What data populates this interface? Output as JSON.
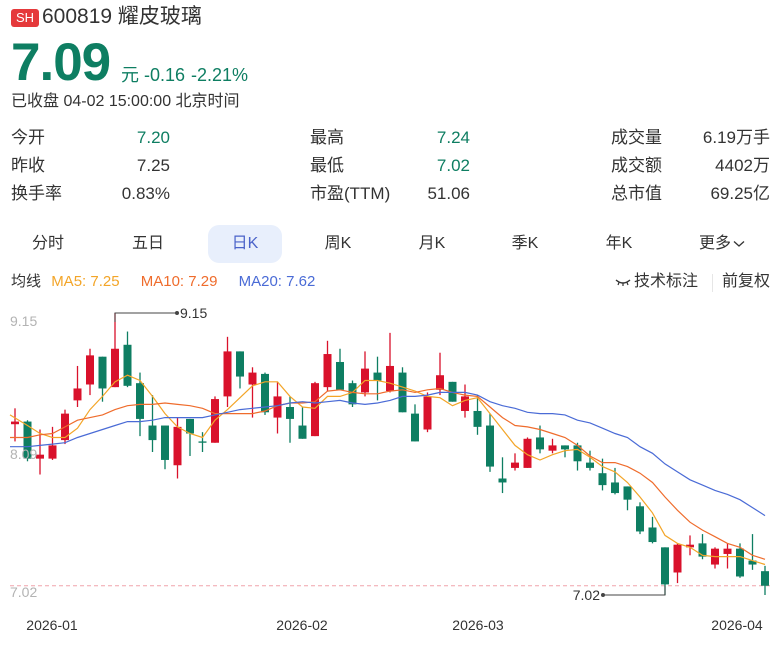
{
  "header": {
    "exchange_badge": "SH",
    "stock_code": "600819",
    "stock_name": "耀皮玻璃",
    "price": "7.09",
    "currency_unit": "元",
    "change": "-0.16",
    "change_pct": "-2.21%",
    "status": "已收盘 04-02 15:00:00 北京时间"
  },
  "colors": {
    "down": "#0e7e62",
    "up": "#d9112b",
    "badge": "#e5393b",
    "ma5": "#f3a528",
    "ma10": "#ef6c2c",
    "ma20": "#4a6bd6",
    "active_tab_bg": "#e8effc",
    "active_tab_text": "#4b63c9",
    "price_line": "#f0a3ab"
  },
  "stats": [
    [
      {
        "label": "今开",
        "value": "7.20",
        "color": "green"
      },
      {
        "label": "最高",
        "value": "7.24",
        "color": "green"
      },
      {
        "label": "成交量",
        "value": "6.19万手",
        "color": "default"
      }
    ],
    [
      {
        "label": "昨收",
        "value": "7.25",
        "color": "default"
      },
      {
        "label": "最低",
        "value": "7.02",
        "color": "green"
      },
      {
        "label": "成交额",
        "value": "4402万",
        "color": "default"
      }
    ],
    [
      {
        "label": "换手率",
        "value": "0.83%",
        "color": "default"
      },
      {
        "label": "市盈(TTM)",
        "value": "51.06",
        "color": "default"
      },
      {
        "label": "总市值",
        "value": "69.25亿",
        "color": "default"
      }
    ]
  ],
  "tabs": [
    {
      "label": "分时",
      "active": false
    },
    {
      "label": "五日",
      "active": false
    },
    {
      "label": "日K",
      "active": true
    },
    {
      "label": "周K",
      "active": false
    },
    {
      "label": "月K",
      "active": false
    },
    {
      "label": "季K",
      "active": false
    },
    {
      "label": "年K",
      "active": false
    },
    {
      "label": "更多",
      "active": false,
      "icon": "chevron-down-icon"
    }
  ],
  "ma_legend": {
    "title": "均线",
    "ma5": "MA5: 7.25",
    "ma10": "MA10: 7.29",
    "ma20": "MA20: 7.62"
  },
  "toolbar": {
    "tech_annotation": "技术标注",
    "tech_annotation_icon": "eye-closed-icon",
    "adjust_mode": "前复权"
  },
  "chart_data": {
    "type": "candlestick",
    "title": "日K",
    "xlabel": "",
    "ylabel": "",
    "ylim": [
      7.02,
      9.15
    ],
    "y_tick_labels": [
      "9.15",
      "8.09",
      "7.02"
    ],
    "x_tick_labels": [
      {
        "label": "2026-01",
        "index": 3
      },
      {
        "label": "2026-02",
        "index": 23
      },
      {
        "label": "2026-03",
        "index": 37
      },
      {
        "label": "2026-04",
        "index": 58
      }
    ],
    "grid": false,
    "current_price_line": 7.09,
    "annotations": [
      {
        "label": "9.15",
        "type": "max",
        "index": 8
      },
      {
        "label": "7.02",
        "type": "min",
        "index": 52
      }
    ],
    "candles": [
      {
        "o": 8.31,
        "h": 8.43,
        "l": 8.18,
        "c": 8.33
      },
      {
        "o": 8.33,
        "h": 8.34,
        "l": 8.03,
        "c": 8.05
      },
      {
        "o": 8.05,
        "h": 8.27,
        "l": 7.93,
        "c": 8.08
      },
      {
        "o": 8.05,
        "h": 8.29,
        "l": 8.04,
        "c": 8.15
      },
      {
        "o": 8.19,
        "h": 8.42,
        "l": 8.16,
        "c": 8.39
      },
      {
        "o": 8.49,
        "h": 8.75,
        "l": 8.44,
        "c": 8.58
      },
      {
        "o": 8.61,
        "h": 8.88,
        "l": 8.53,
        "c": 8.83
      },
      {
        "o": 8.82,
        "h": 8.82,
        "l": 8.48,
        "c": 8.58
      },
      {
        "o": 8.59,
        "h": 9.15,
        "l": 8.59,
        "c": 8.88
      },
      {
        "o": 8.91,
        "h": 9.01,
        "l": 8.59,
        "c": 8.6
      },
      {
        "o": 8.62,
        "h": 8.7,
        "l": 8.22,
        "c": 8.35
      },
      {
        "o": 8.3,
        "h": 8.53,
        "l": 8.1,
        "c": 8.19
      },
      {
        "o": 8.3,
        "h": 8.3,
        "l": 7.97,
        "c": 8.04
      },
      {
        "o": 8.0,
        "h": 8.36,
        "l": 7.9,
        "c": 8.29
      },
      {
        "o": 8.35,
        "h": 8.35,
        "l": 8.07,
        "c": 8.24
      },
      {
        "o": 8.18,
        "h": 8.25,
        "l": 8.1,
        "c": 8.17
      },
      {
        "o": 8.17,
        "h": 8.52,
        "l": 8.17,
        "c": 8.5
      },
      {
        "o": 8.52,
        "h": 8.97,
        "l": 8.44,
        "c": 8.86
      },
      {
        "o": 8.86,
        "h": 8.86,
        "l": 8.58,
        "c": 8.67
      },
      {
        "o": 8.61,
        "h": 8.74,
        "l": 8.36,
        "c": 8.7
      },
      {
        "o": 8.69,
        "h": 8.7,
        "l": 8.38,
        "c": 8.4
      },
      {
        "o": 8.36,
        "h": 8.63,
        "l": 8.24,
        "c": 8.52
      },
      {
        "o": 8.44,
        "h": 8.52,
        "l": 8.17,
        "c": 8.35
      },
      {
        "o": 8.3,
        "h": 8.44,
        "l": 8.2,
        "c": 8.2
      },
      {
        "o": 8.22,
        "h": 8.63,
        "l": 8.22,
        "c": 8.62
      },
      {
        "o": 8.59,
        "h": 8.94,
        "l": 8.56,
        "c": 8.84
      },
      {
        "o": 8.78,
        "h": 8.88,
        "l": 8.57,
        "c": 8.57
      },
      {
        "o": 8.62,
        "h": 8.64,
        "l": 8.44,
        "c": 8.46
      },
      {
        "o": 8.55,
        "h": 8.86,
        "l": 8.52,
        "c": 8.73
      },
      {
        "o": 8.7,
        "h": 8.82,
        "l": 8.49,
        "c": 8.64
      },
      {
        "o": 8.56,
        "h": 9.0,
        "l": 8.55,
        "c": 8.75
      },
      {
        "o": 8.7,
        "h": 8.74,
        "l": 8.4,
        "c": 8.4
      },
      {
        "o": 8.39,
        "h": 8.46,
        "l": 8.18,
        "c": 8.18
      },
      {
        "o": 8.27,
        "h": 8.55,
        "l": 8.25,
        "c": 8.52
      },
      {
        "o": 8.57,
        "h": 8.85,
        "l": 8.53,
        "c": 8.68
      },
      {
        "o": 8.63,
        "h": 8.63,
        "l": 8.48,
        "c": 8.48
      },
      {
        "o": 8.41,
        "h": 8.61,
        "l": 8.36,
        "c": 8.52
      },
      {
        "o": 8.41,
        "h": 8.53,
        "l": 8.23,
        "c": 8.29
      },
      {
        "o": 8.3,
        "h": 8.39,
        "l": 7.95,
        "c": 7.99
      },
      {
        "o": 7.9,
        "h": 8.06,
        "l": 7.79,
        "c": 7.87
      },
      {
        "o": 7.98,
        "h": 8.09,
        "l": 7.96,
        "c": 8.02
      },
      {
        "o": 7.98,
        "h": 8.21,
        "l": 7.98,
        "c": 8.2
      },
      {
        "o": 8.21,
        "h": 8.3,
        "l": 8.09,
        "c": 8.12
      },
      {
        "o": 8.11,
        "h": 8.2,
        "l": 8.09,
        "c": 8.15
      },
      {
        "o": 8.15,
        "h": 8.15,
        "l": 8.06,
        "c": 8.12
      },
      {
        "o": 8.15,
        "h": 8.17,
        "l": 7.96,
        "c": 8.03
      },
      {
        "o": 8.02,
        "h": 8.11,
        "l": 7.96,
        "c": 7.98
      },
      {
        "o": 7.94,
        "h": 8.05,
        "l": 7.81,
        "c": 7.85
      },
      {
        "o": 7.87,
        "h": 7.98,
        "l": 7.78,
        "c": 7.79
      },
      {
        "o": 7.84,
        "h": 7.84,
        "l": 7.66,
        "c": 7.74
      },
      {
        "o": 7.69,
        "h": 7.72,
        "l": 7.48,
        "c": 7.5
      },
      {
        "o": 7.53,
        "h": 7.61,
        "l": 7.41,
        "c": 7.42
      },
      {
        "o": 7.38,
        "h": 7.38,
        "l": 7.02,
        "c": 7.1
      },
      {
        "o": 7.19,
        "h": 7.41,
        "l": 7.11,
        "c": 7.4
      },
      {
        "o": 7.38,
        "h": 7.47,
        "l": 7.32,
        "c": 7.4
      },
      {
        "o": 7.41,
        "h": 7.48,
        "l": 7.29,
        "c": 7.31
      },
      {
        "o": 7.25,
        "h": 7.38,
        "l": 7.22,
        "c": 7.37
      },
      {
        "o": 7.33,
        "h": 7.41,
        "l": 7.22,
        "c": 7.37
      },
      {
        "o": 7.37,
        "h": 7.41,
        "l": 7.15,
        "c": 7.16
      },
      {
        "o": 7.28,
        "h": 7.48,
        "l": 7.21,
        "c": 7.25
      },
      {
        "o": 7.2,
        "h": 7.24,
        "l": 7.02,
        "c": 7.09
      }
    ],
    "series": [
      {
        "name": "MA5",
        "values": [
          8.38,
          8.3,
          8.24,
          8.21,
          8.21,
          8.28,
          8.42,
          8.52,
          8.63,
          8.68,
          8.64,
          8.52,
          8.39,
          8.29,
          8.24,
          8.21,
          8.34,
          8.42,
          8.51,
          8.6,
          8.63,
          8.63,
          8.52,
          8.44,
          8.43,
          8.52,
          8.52,
          8.55,
          8.64,
          8.64,
          8.62,
          8.59,
          8.56,
          8.52,
          8.51,
          8.45,
          8.49,
          8.51,
          8.39,
          8.27,
          8.15,
          8.08,
          8.04,
          8.08,
          8.11,
          8.12,
          8.06,
          7.99,
          7.95,
          7.87,
          7.76,
          7.64,
          7.47,
          7.41,
          7.38,
          7.32,
          7.31,
          7.31,
          7.31,
          7.28,
          7.25
        ]
      },
      {
        "name": "MA10",
        "values": [
          8.21,
          8.21,
          8.23,
          8.24,
          8.29,
          8.34,
          8.36,
          8.38,
          8.42,
          8.45,
          8.46,
          8.46,
          8.47,
          8.46,
          8.45,
          8.43,
          8.39,
          8.39,
          8.39,
          8.39,
          8.41,
          8.45,
          8.47,
          8.47,
          8.48,
          8.56,
          8.57,
          8.55,
          8.54,
          8.54,
          8.56,
          8.57,
          8.55,
          8.57,
          8.58,
          8.55,
          8.53,
          8.52,
          8.44,
          8.36,
          8.3,
          8.29,
          8.27,
          8.24,
          8.21,
          8.15,
          8.07,
          8.02,
          8.02,
          7.99,
          7.94,
          7.87,
          7.76,
          7.66,
          7.57,
          7.51,
          7.46,
          7.41,
          7.38,
          7.32,
          7.29
        ]
      },
      {
        "name": "MA20",
        "values": [
          8.14,
          8.14,
          8.15,
          8.16,
          8.17,
          8.21,
          8.24,
          8.27,
          8.3,
          8.33,
          8.33,
          8.34,
          8.36,
          8.36,
          8.36,
          8.36,
          8.38,
          8.4,
          8.42,
          8.43,
          8.44,
          8.45,
          8.47,
          8.48,
          8.47,
          8.48,
          8.49,
          8.47,
          8.46,
          8.47,
          8.49,
          8.52,
          8.52,
          8.53,
          8.55,
          8.55,
          8.55,
          8.53,
          8.48,
          8.45,
          8.43,
          8.4,
          8.39,
          8.39,
          8.38,
          8.34,
          8.32,
          8.28,
          8.24,
          8.21,
          8.14,
          8.09,
          8.01,
          7.95,
          7.89,
          7.85,
          7.81,
          7.78,
          7.74,
          7.68,
          7.62
        ]
      }
    ]
  }
}
